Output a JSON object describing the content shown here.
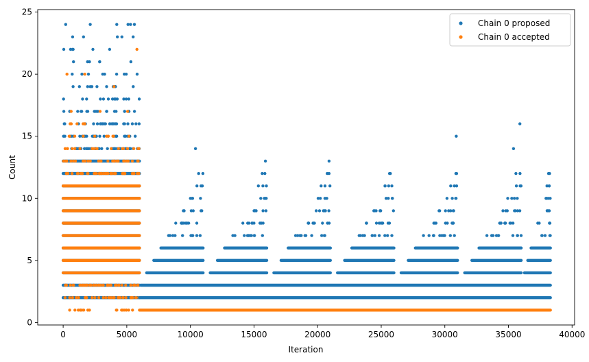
{
  "chart_data": {
    "type": "scatter",
    "xlabel": "Iteration",
    "ylabel": "Count",
    "xlim": [
      -2000,
      40200
    ],
    "ylim": [
      -0.2,
      25.2
    ],
    "x_ticks": [
      0,
      5000,
      10000,
      15000,
      20000,
      25000,
      30000,
      35000,
      40000
    ],
    "y_ticks": [
      0,
      5,
      10,
      15,
      20,
      25
    ],
    "legend_position": "top-right",
    "grid": false,
    "series": [
      {
        "name": "Chain 0 proposed",
        "color": "#1f77b4",
        "segments": [
          {
            "x_range": [
              0,
              6000
            ],
            "max_count": 24,
            "description": "dense across counts 1-13, sparse up to 24"
          },
          {
            "x_range": [
              6000,
              38300
            ],
            "max_count": 16,
            "description": "dense at counts 1-5, periodic bursts every ~5000 iterations peaking at counts 11-16"
          }
        ],
        "notable_points": [
          {
            "x": 200,
            "y": 24
          },
          {
            "x": 5100,
            "y": 24
          },
          {
            "x": 5300,
            "y": 24
          },
          {
            "x": 5600,
            "y": 24
          },
          {
            "x": 1600,
            "y": 23
          },
          {
            "x": 5500,
            "y": 23
          },
          {
            "x": 10400,
            "y": 14
          },
          {
            "x": 30900,
            "y": 15
          },
          {
            "x": 35900,
            "y": 16
          },
          {
            "x": 35400,
            "y": 14
          },
          {
            "x": 15900,
            "y": 13
          },
          {
            "x": 20900,
            "y": 13
          },
          {
            "x": 25300,
            "y": 11
          }
        ]
      },
      {
        "name": "Chain 0 accepted",
        "color": "#ff7f0e",
        "segments": [
          {
            "x_range": [
              0,
              6000
            ],
            "max_count": 22,
            "description": "dense across counts 1-13, sparse to 22"
          },
          {
            "x_range": [
              6000,
              38300
            ],
            "max_count": 1,
            "description": "constant at count 1"
          }
        ],
        "notable_points": [
          {
            "x": 5800,
            "y": 22
          },
          {
            "x": 300,
            "y": 20
          },
          {
            "x": 1700,
            "y": 20
          },
          {
            "x": 4000,
            "y": 19
          }
        ]
      }
    ]
  }
}
